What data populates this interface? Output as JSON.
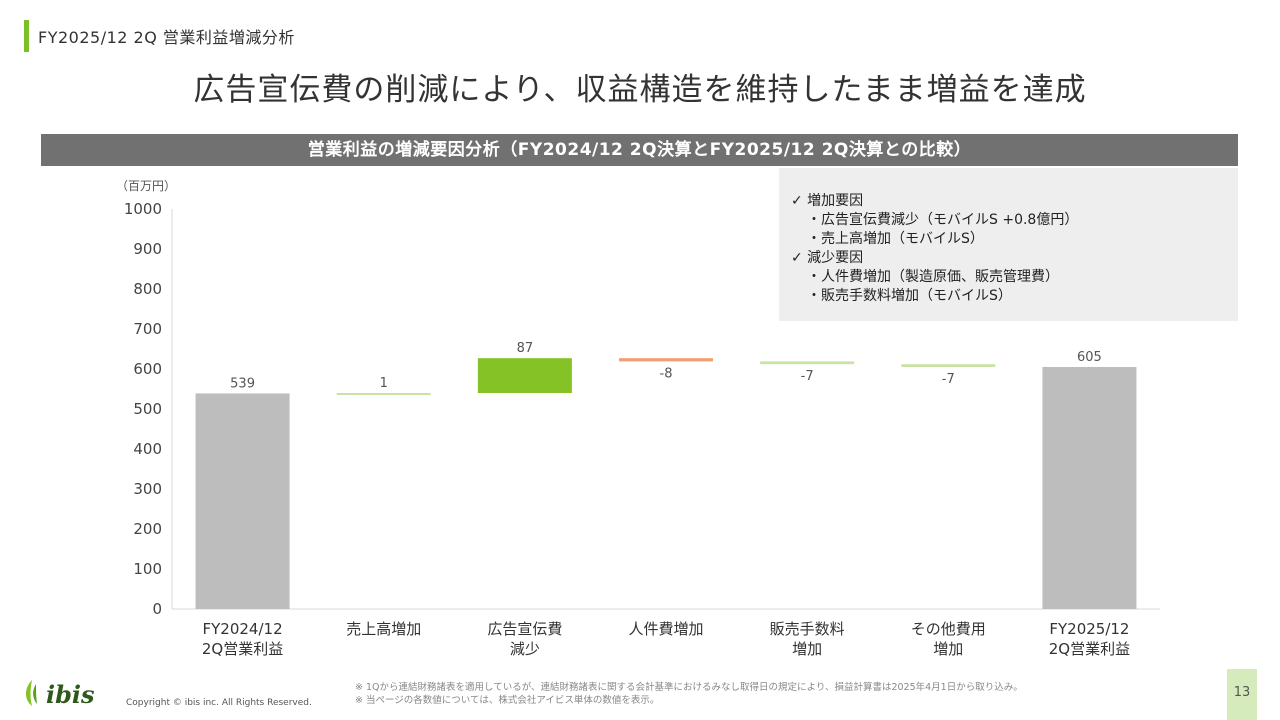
{
  "section_title": "FY2025/12 2Q 営業利益増減分析",
  "headline": "広告宣伝費の削減により、収益構造を維持したまま増益を達成",
  "chart_banner": "営業利益の増減要因分析（FY2024/12 2Q決算とFY2025/12 2Q決算との比較）",
  "notes": {
    "increase_heading": "✓ 増加要因",
    "increase_items": [
      "・広告宣伝費減少（モバイルS +0.8億円）",
      "・売上高増加（モバイルS）"
    ],
    "decrease_heading": "✓ 減少要因",
    "decrease_items": [
      "・人件費増加（製造原価、販売管理費）",
      "・販売手数料増加（モバイルS）"
    ]
  },
  "chart_data": {
    "type": "bar",
    "subtype": "waterfall",
    "unit_label": "（百万円）",
    "ylim": [
      0,
      1000
    ],
    "yticks": [
      0,
      100,
      200,
      300,
      400,
      500,
      600,
      700,
      800,
      900,
      1000
    ],
    "grid": false,
    "categories": [
      [
        "FY2024/12",
        "2Q営業利益"
      ],
      [
        "売上高増加"
      ],
      [
        "広告宣伝費",
        "減少"
      ],
      [
        "人件費増加"
      ],
      [
        "販売手数料",
        "増加"
      ],
      [
        "その他費用",
        "増加"
      ],
      [
        "FY2025/12",
        "2Q営業利益"
      ]
    ],
    "bars": [
      {
        "kind": "total",
        "value": 539,
        "label": "539",
        "color": "#bdbdbd"
      },
      {
        "kind": "delta",
        "value": 1,
        "label": "1",
        "color": "#c9e3a6"
      },
      {
        "kind": "delta",
        "value": 87,
        "label": "87",
        "color": "#84c225"
      },
      {
        "kind": "delta",
        "value": -8,
        "label": "-8",
        "color": "#f0a070"
      },
      {
        "kind": "delta",
        "value": -7,
        "label": "-7",
        "color": "#c9e3a6"
      },
      {
        "kind": "delta",
        "value": -7,
        "label": "-7",
        "color": "#c9e3a6"
      },
      {
        "kind": "total",
        "value": 605,
        "label": "605",
        "color": "#bdbdbd"
      }
    ]
  },
  "footnotes": [
    "※ 1Qから連結財務諸表を適用しているが、連結財務諸表に関する会計基準におけるみなし取得日の規定により、損益計算書は2025年4月1日から取り込み。",
    "※ 当ページの各数値については、株式会社アイビス単体の数値を表示。"
  ],
  "logo_text": "ibis",
  "copyright": "Copyright © ibis inc. All Rights Reserved.",
  "page_number": "13"
}
